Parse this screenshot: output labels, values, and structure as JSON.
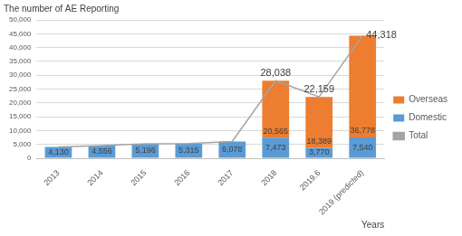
{
  "chart_data": {
    "type": "bar",
    "title": "The number of AE Reporting",
    "x_label": "Years",
    "categories": [
      "2013",
      "2014",
      "2015",
      "2016",
      "2017",
      "2018",
      "2019.6",
      "2019 (predicted)"
    ],
    "stacked": true,
    "data_labels": true,
    "grid": true,
    "legend": "right",
    "ylim": [
      0,
      50000
    ],
    "yticks": [
      0,
      {
        "value": 5000,
        "label": "5,000"
      },
      {
        "value": 10000,
        "label": "10,000"
      },
      {
        "value": 15000,
        "label": "15,000"
      },
      {
        "value": 20000,
        "label": "20,000"
      },
      {
        "value": 25000,
        "label": "25,000"
      },
      {
        "value": 30000,
        "label": "30,000"
      },
      {
        "value": 35000,
        "label": "35,000"
      },
      {
        "value": 40000,
        "label": "40,000"
      },
      {
        "value": 45000,
        "label": "45,000"
      },
      {
        "value": 50000,
        "label": "50,000"
      }
    ],
    "series": [
      {
        "name": "Domestic",
        "type": "bar",
        "color": "#5b9bd5",
        "values": [
          4130,
          4556,
          5196,
          5315,
          6078,
          7473,
          3770,
          7540
        ],
        "value_labels": [
          "4,130",
          "4,556",
          "5,196",
          "5,315",
          "6,078",
          "7,473",
          "3,770",
          "7,540"
        ]
      },
      {
        "name": "Overseas",
        "type": "bar",
        "color": "#ed7d31",
        "values": [
          null,
          null,
          null,
          null,
          null,
          20565,
          18389,
          36778
        ],
        "value_labels": [
          null,
          null,
          null,
          null,
          null,
          "20,565",
          "18,389",
          "36,778"
        ]
      },
      {
        "name": "Total",
        "type": "line",
        "color": "#a5a5a5",
        "marker": "none",
        "line_style": "solid",
        "values": [
          4130,
          4556,
          5196,
          5315,
          6078,
          28038,
          22159,
          44318
        ],
        "value_labels": [
          null,
          null,
          null,
          null,
          null,
          "28,038",
          "22,159",
          "44,318"
        ]
      }
    ]
  }
}
